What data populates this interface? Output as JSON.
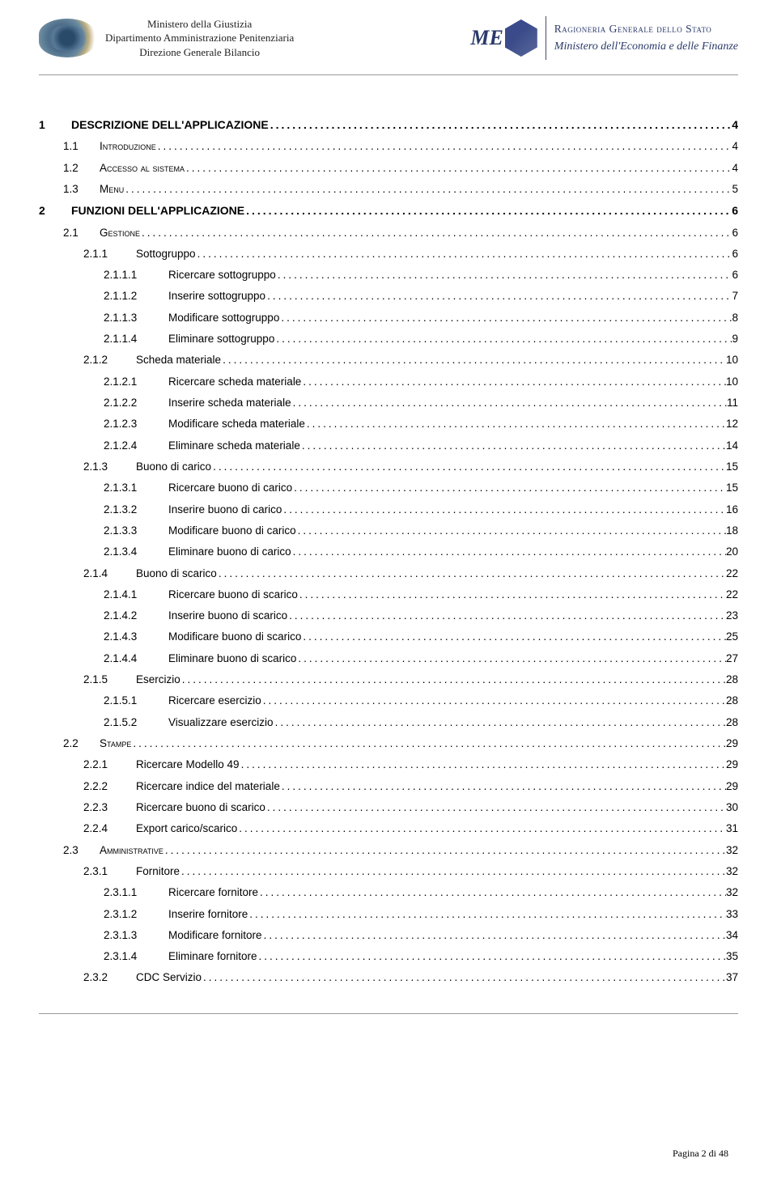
{
  "header": {
    "ministero_line1": "Ministero della Giustizia",
    "ministero_line2": "Dipartimento Amministrazione Penitenziaria",
    "ministero_line3": "Direzione Generale Bilancio",
    "mef_text": "ME",
    "mef_text2": "",
    "ragioneria_line1": "Ragioneria Generale dello Stato",
    "ragioneria_line2": "Ministero dell'Economia e delle Finanze"
  },
  "toc": [
    {
      "level": 0,
      "bold": true,
      "num": "1",
      "title": "DESCRIZIONE DELL'APPLICAZIONE",
      "page": "4",
      "section": true
    },
    {
      "level": 1,
      "bold": false,
      "num": "1.1",
      "title": "Introduzione",
      "page": "4",
      "smallcaps": true
    },
    {
      "level": 1,
      "bold": false,
      "num": "1.2",
      "title": "Accesso al sistema",
      "page": "4",
      "smallcaps": true
    },
    {
      "level": 1,
      "bold": false,
      "num": "1.3",
      "title": "Menu",
      "page": "5",
      "smallcaps": true
    },
    {
      "level": 0,
      "bold": true,
      "num": "2",
      "title": "FUNZIONI DELL'APPLICAZIONE",
      "page": "6",
      "section": true
    },
    {
      "level": 1,
      "bold": false,
      "num": "2.1",
      "title": "Gestione",
      "page": "6",
      "smallcaps": true
    },
    {
      "level": 2,
      "bold": false,
      "num": "2.1.1",
      "title": "Sottogruppo",
      "page": "6"
    },
    {
      "level": 3,
      "bold": false,
      "num": "2.1.1.1",
      "title": "Ricercare sottogruppo",
      "page": "6"
    },
    {
      "level": 3,
      "bold": false,
      "num": "2.1.1.2",
      "title": "Inserire sottogruppo",
      "page": "7"
    },
    {
      "level": 3,
      "bold": false,
      "num": "2.1.1.3",
      "title": "Modificare sottogruppo",
      "page": "8"
    },
    {
      "level": 3,
      "bold": false,
      "num": "2.1.1.4",
      "title": "Eliminare sottogruppo",
      "page": "9"
    },
    {
      "level": 2,
      "bold": false,
      "num": "2.1.2",
      "title": "Scheda materiale",
      "page": "10"
    },
    {
      "level": 3,
      "bold": false,
      "num": "2.1.2.1",
      "title": "Ricercare scheda materiale",
      "page": "10"
    },
    {
      "level": 3,
      "bold": false,
      "num": "2.1.2.2",
      "title": "Inserire scheda materiale",
      "page": "11"
    },
    {
      "level": 3,
      "bold": false,
      "num": "2.1.2.3",
      "title": "Modificare scheda materiale",
      "page": "12"
    },
    {
      "level": 3,
      "bold": false,
      "num": "2.1.2.4",
      "title": "Eliminare scheda materiale",
      "page": "14"
    },
    {
      "level": 2,
      "bold": false,
      "num": "2.1.3",
      "title": "Buono di carico",
      "page": "15"
    },
    {
      "level": 3,
      "bold": false,
      "num": "2.1.3.1",
      "title": "Ricercare buono di carico",
      "page": "15"
    },
    {
      "level": 3,
      "bold": false,
      "num": "2.1.3.2",
      "title": "Inserire buono di carico",
      "page": "16"
    },
    {
      "level": 3,
      "bold": false,
      "num": "2.1.3.3",
      "title": "Modificare buono di carico",
      "page": "18"
    },
    {
      "level": 3,
      "bold": false,
      "num": "2.1.3.4",
      "title": "Eliminare buono di carico",
      "page": "20"
    },
    {
      "level": 2,
      "bold": false,
      "num": "2.1.4",
      "title": "Buono di scarico",
      "page": "22"
    },
    {
      "level": 3,
      "bold": false,
      "num": "2.1.4.1",
      "title": "Ricercare buono di scarico",
      "page": "22"
    },
    {
      "level": 3,
      "bold": false,
      "num": "2.1.4.2",
      "title": "Inserire buono di scarico",
      "page": "23"
    },
    {
      "level": 3,
      "bold": false,
      "num": "2.1.4.3",
      "title": "Modificare buono di scarico",
      "page": "25"
    },
    {
      "level": 3,
      "bold": false,
      "num": "2.1.4.4",
      "title": "Eliminare buono di scarico",
      "page": "27"
    },
    {
      "level": 2,
      "bold": false,
      "num": "2.1.5",
      "title": "Esercizio",
      "page": "28"
    },
    {
      "level": 3,
      "bold": false,
      "num": "2.1.5.1",
      "title": "Ricercare esercizio",
      "page": "28"
    },
    {
      "level": 3,
      "bold": false,
      "num": "2.1.5.2",
      "title": "Visualizzare esercizio",
      "page": "28"
    },
    {
      "level": 1,
      "bold": false,
      "num": "2.2",
      "title": "Stampe",
      "page": "29",
      "smallcaps": true
    },
    {
      "level": 2,
      "bold": false,
      "num": "2.2.1",
      "title": "Ricercare Modello 49",
      "page": "29"
    },
    {
      "level": 2,
      "bold": false,
      "num": "2.2.2",
      "title": "Ricercare indice del materiale",
      "page": "29"
    },
    {
      "level": 2,
      "bold": false,
      "num": "2.2.3",
      "title": "Ricercare buono di scarico",
      "page": "30"
    },
    {
      "level": 2,
      "bold": false,
      "num": "2.2.4",
      "title": "Export carico/scarico",
      "page": "31"
    },
    {
      "level": 1,
      "bold": false,
      "num": "2.3",
      "title": "Amministrative",
      "page": "32",
      "smallcaps": true
    },
    {
      "level": 2,
      "bold": false,
      "num": "2.3.1",
      "title": "Fornitore",
      "page": "32"
    },
    {
      "level": 3,
      "bold": false,
      "num": "2.3.1.1",
      "title": "Ricercare fornitore",
      "page": "32"
    },
    {
      "level": 3,
      "bold": false,
      "num": "2.3.1.2",
      "title": "Inserire fornitore",
      "page": "33"
    },
    {
      "level": 3,
      "bold": false,
      "num": "2.3.1.3",
      "title": "Modificare fornitore",
      "page": "34"
    },
    {
      "level": 3,
      "bold": false,
      "num": "2.3.1.4",
      "title": "Eliminare fornitore",
      "page": "35"
    },
    {
      "level": 2,
      "bold": false,
      "num": "2.3.2",
      "title": "CDC Servizio",
      "page": "37"
    }
  ],
  "footer": {
    "text": "Pagina 2 di 48"
  }
}
